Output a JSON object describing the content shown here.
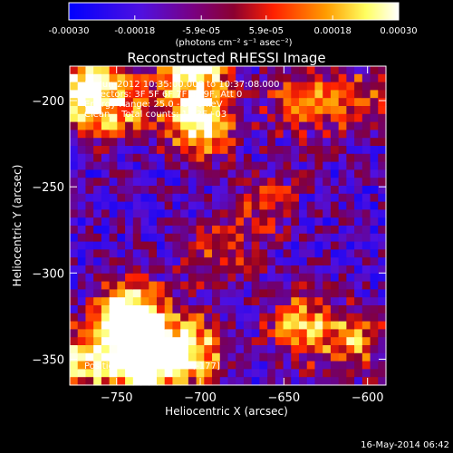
{
  "colorbar": {
    "ticks": [
      "-0.00030",
      "-0.00018",
      "-5.9e-05",
      "5.9e-05",
      "0.00018",
      "0.00030"
    ],
    "tick_values": [
      -0.0003,
      -0.00018,
      -5.9e-05,
      5.9e-05,
      0.00018,
      0.0003
    ],
    "range": [
      -0.0003,
      0.0003
    ],
    "units_label": "(photons cm⁻² s⁻¹ asec⁻²)",
    "colors": [
      "#0000ff",
      "#6a00c8",
      "#8b0046",
      "#ff2000",
      "#ff9c00",
      "#ffff80",
      "#ffffff"
    ]
  },
  "chart_data": {
    "type": "heatmap",
    "title": "Reconstructed RHESSI Image",
    "xlabel": "Heliocentric X (arcsec)",
    "ylabel": "Heliocentric Y (arcsec)",
    "xlim": [
      -778,
      -589
    ],
    "ylim": [
      -365,
      -180
    ],
    "x_ticks": [
      -750,
      -700,
      -650,
      -600
    ],
    "x_tick_labels": [
      "−750",
      "−700",
      "−650",
      "−600"
    ],
    "y_ticks": [
      -200,
      -250,
      -300,
      -350
    ],
    "y_tick_labels": [
      "−200",
      "−250",
      "−300",
      "−350"
    ],
    "grid_size": 40,
    "grid": false,
    "annotations": {
      "time": "11-Jun-2012 10:35:00.000 to 10:37:08.000",
      "detectors": "Detectors: 3F 5F 6F 7F 8F 9F, Att 0",
      "energy": "Energy Range: 25.0 - 50.0 keV",
      "method": "Clean    Total counts: 1.93E+03",
      "peak": "Position of Peak = [-694,-177]"
    },
    "emission_sources": [
      {
        "x": -770,
        "y": -195,
        "intensity": 0.85
      },
      {
        "x": -745,
        "y": -205,
        "intensity": 0.4
      },
      {
        "x": -705,
        "y": -175,
        "intensity": 1.0
      },
      {
        "x": -700,
        "y": -212,
        "intensity": 0.8
      },
      {
        "x": -640,
        "y": -200,
        "intensity": 0.45
      },
      {
        "x": -605,
        "y": -200,
        "intensity": 0.4
      },
      {
        "x": -742,
        "y": -325,
        "intensity": 0.9
      },
      {
        "x": -735,
        "y": -350,
        "intensity": 1.0
      },
      {
        "x": -705,
        "y": -345,
        "intensity": 0.7
      },
      {
        "x": -770,
        "y": -350,
        "intensity": 0.6
      },
      {
        "x": -690,
        "y": -290,
        "intensity": 0.35
      },
      {
        "x": -640,
        "y": -330,
        "intensity": 0.5
      },
      {
        "x": -610,
        "y": -340,
        "intensity": 0.45
      },
      {
        "x": -660,
        "y": -260,
        "intensity": 0.3
      }
    ]
  },
  "footer": {
    "timestamp": "16-May-2014 06:42"
  }
}
